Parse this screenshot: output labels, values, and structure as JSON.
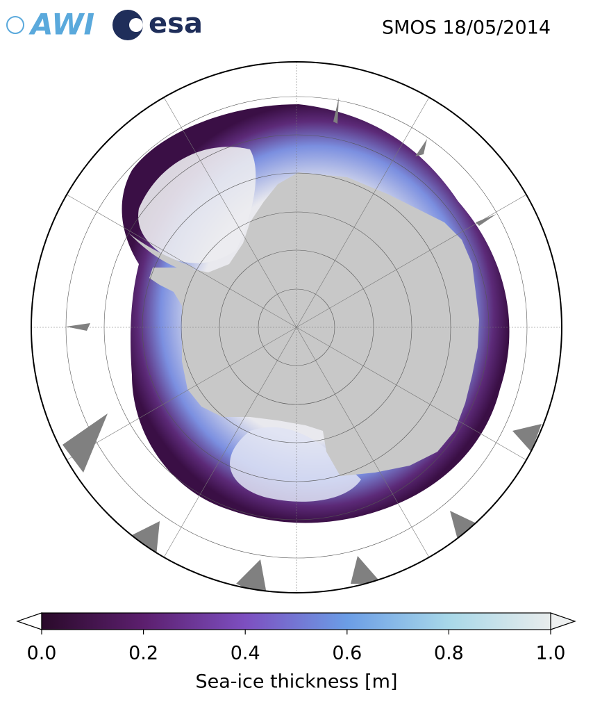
{
  "header": {
    "logo_left": "AWI",
    "logo_right": "esa",
    "title": "SMOS 18/05/2014"
  },
  "colorbar": {
    "label": "Sea-ice thickness [m]",
    "lim": [
      0,
      1
    ],
    "ticks": [
      {
        "value": 0,
        "label": "0.0"
      },
      0.2,
      0.4,
      0.6,
      0.8,
      {
        "value": 1,
        "label": "1.0"
      }
    ],
    "colormap": [
      "#2a0a2a",
      "#5c1f6e",
      "#7d4fc0",
      "#6b9de6",
      "#a8d8e8",
      "#e8ecec"
    ]
  }
}
